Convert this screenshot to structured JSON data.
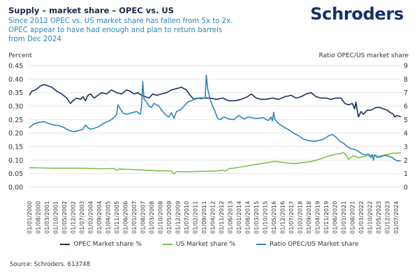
{
  "header": {
    "title": "Supply – market share – OPEC vs. US",
    "subtitle": "Since 2012 OPEC vs. US market share has fallen from 5x to 2x. OPEC appear to have had enough and plan to return barrels from Dec 2024",
    "logo": "Schroders"
  },
  "footer": {
    "source": "Source: Schroders. 613748"
  },
  "chart_data": {
    "type": "line",
    "title": "Supply – market share – OPEC vs. US",
    "left_axis": {
      "label": "Percent",
      "range": [
        0,
        0.45
      ],
      "ticks": [
        "0.00",
        "0.05",
        "0.10",
        "0.15",
        "0.20",
        "0.25",
        "0.30",
        "0.35",
        "0.40",
        "0.45"
      ]
    },
    "right_axis": {
      "label": "Ratio OPEC/US market share",
      "range": [
        0,
        9
      ],
      "ticks": [
        "0",
        "1",
        "2",
        "3",
        "4",
        "5",
        "6",
        "7",
        "8",
        "9"
      ]
    },
    "x_range_months_from_jan_2000": [
      0,
      298
    ],
    "x_tick_labels": [
      "01/01/2000",
      "01/08/2000",
      "01/03/2001",
      "01/10/2001",
      "01/05/2002",
      "01/12/2002",
      "01/07/2003",
      "01/02/2004",
      "01/09/2004",
      "01/04/2005",
      "01/11/2005",
      "01/06/2006",
      "01/01/2007",
      "01/08/2007",
      "01/03/2008",
      "01/10/2008",
      "01/05/2009",
      "01/12/2009",
      "01/07/2010",
      "01/02/2011",
      "01/09/2011",
      "01/04/2012",
      "01/11/2012",
      "01/06/2013",
      "01/01/2014",
      "01/08/2014",
      "01/03/2015",
      "01/10/2015",
      "01/05/2016",
      "01/12/2016",
      "01/07/2017",
      "01/02/2018",
      "01/09/2018",
      "01/04/2019",
      "01/11/2019",
      "01/06/2020",
      "01/01/2021",
      "01/08/2021",
      "01/03/2022",
      "01/10/2022",
      "01/05/2023",
      "01/12/2023",
      "01/07/2024"
    ],
    "grid": true,
    "legend_position": "bottom",
    "series": [
      {
        "name": "OPEC Market share %",
        "axis": "left",
        "color": "#1b2f5a",
        "points": [
          [
            0,
            0.34
          ],
          [
            2,
            0.355
          ],
          [
            5,
            0.36
          ],
          [
            9,
            0.375
          ],
          [
            12,
            0.38
          ],
          [
            15,
            0.375
          ],
          [
            18,
            0.37
          ],
          [
            22,
            0.355
          ],
          [
            26,
            0.345
          ],
          [
            30,
            0.33
          ],
          [
            33,
            0.31
          ],
          [
            35,
            0.32
          ],
          [
            38,
            0.33
          ],
          [
            41,
            0.325
          ],
          [
            43,
            0.335
          ],
          [
            45,
            0.32
          ],
          [
            47,
            0.34
          ],
          [
            49,
            0.345
          ],
          [
            52,
            0.33
          ],
          [
            55,
            0.34
          ],
          [
            58,
            0.35
          ],
          [
            62,
            0.345
          ],
          [
            66,
            0.36
          ],
          [
            70,
            0.35
          ],
          [
            74,
            0.345
          ],
          [
            78,
            0.36
          ],
          [
            81,
            0.355
          ],
          [
            84,
            0.345
          ],
          [
            87,
            0.35
          ],
          [
            90,
            0.34
          ],
          [
            93,
            0.335
          ],
          [
            96,
            0.33
          ],
          [
            99,
            0.345
          ],
          [
            102,
            0.34
          ],
          [
            106,
            0.345
          ],
          [
            110,
            0.35
          ],
          [
            114,
            0.36
          ],
          [
            118,
            0.365
          ],
          [
            122,
            0.37
          ],
          [
            126,
            0.36
          ],
          [
            129,
            0.34
          ],
          [
            132,
            0.325
          ],
          [
            136,
            0.33
          ],
          [
            140,
            0.33
          ],
          [
            145,
            0.33
          ],
          [
            150,
            0.325
          ],
          [
            155,
            0.33
          ],
          [
            160,
            0.32
          ],
          [
            165,
            0.32
          ],
          [
            170,
            0.325
          ],
          [
            175,
            0.335
          ],
          [
            178,
            0.345
          ],
          [
            182,
            0.33
          ],
          [
            186,
            0.325
          ],
          [
            190,
            0.325
          ],
          [
            195,
            0.33
          ],
          [
            200,
            0.325
          ],
          [
            205,
            0.335
          ],
          [
            210,
            0.34
          ],
          [
            214,
            0.33
          ],
          [
            218,
            0.335
          ],
          [
            222,
            0.345
          ],
          [
            226,
            0.35
          ],
          [
            230,
            0.335
          ],
          [
            234,
            0.33
          ],
          [
            238,
            0.33
          ],
          [
            242,
            0.325
          ],
          [
            246,
            0.33
          ],
          [
            250,
            0.33
          ],
          [
            253,
            0.31
          ],
          [
            256,
            0.305
          ],
          [
            259,
            0.31
          ],
          [
            261,
            0.29
          ],
          [
            262,
            0.315
          ],
          [
            263,
            0.285
          ],
          [
            264,
            0.26
          ],
          [
            266,
            0.28
          ],
          [
            268,
            0.27
          ],
          [
            271,
            0.285
          ],
          [
            274,
            0.285
          ],
          [
            278,
            0.295
          ],
          [
            281,
            0.295
          ],
          [
            284,
            0.29
          ],
          [
            287,
            0.285
          ],
          [
            290,
            0.275
          ],
          [
            292,
            0.27
          ],
          [
            293,
            0.26
          ],
          [
            295,
            0.265
          ],
          [
            298,
            0.26
          ]
        ]
      },
      {
        "name": "US Market share %",
        "axis": "left",
        "color": "#7cc34a",
        "points": [
          [
            0,
            0.072
          ],
          [
            10,
            0.071
          ],
          [
            20,
            0.07
          ],
          [
            30,
            0.07
          ],
          [
            40,
            0.07
          ],
          [
            50,
            0.069
          ],
          [
            60,
            0.068
          ],
          [
            68,
            0.069
          ],
          [
            70,
            0.063
          ],
          [
            72,
            0.067
          ],
          [
            80,
            0.066
          ],
          [
            90,
            0.064
          ],
          [
            100,
            0.061
          ],
          [
            104,
            0.06
          ],
          [
            110,
            0.06
          ],
          [
            114,
            0.059
          ],
          [
            116,
            0.05
          ],
          [
            118,
            0.058
          ],
          [
            125,
            0.057
          ],
          [
            135,
            0.058
          ],
          [
            145,
            0.059
          ],
          [
            150,
            0.06
          ],
          [
            155,
            0.063
          ],
          [
            157,
            0.059
          ],
          [
            160,
            0.068
          ],
          [
            170,
            0.075
          ],
          [
            180,
            0.083
          ],
          [
            190,
            0.09
          ],
          [
            196,
            0.095
          ],
          [
            200,
            0.094
          ],
          [
            206,
            0.09
          ],
          [
            212,
            0.087
          ],
          [
            218,
            0.09
          ],
          [
            226,
            0.095
          ],
          [
            234,
            0.105
          ],
          [
            240,
            0.115
          ],
          [
            246,
            0.122
          ],
          [
            250,
            0.125
          ],
          [
            252,
            0.128
          ],
          [
            254,
            0.12
          ],
          [
            256,
            0.103
          ],
          [
            258,
            0.11
          ],
          [
            260,
            0.115
          ],
          [
            262,
            0.113
          ],
          [
            264,
            0.108
          ],
          [
            266,
            0.112
          ],
          [
            270,
            0.115
          ],
          [
            275,
            0.118
          ],
          [
            280,
            0.115
          ],
          [
            284,
            0.118
          ],
          [
            288,
            0.122
          ],
          [
            292,
            0.126
          ],
          [
            298,
            0.127
          ]
        ]
      },
      {
        "name": "Ratio OPEC/US Market share",
        "axis": "right",
        "color": "#2a86b8",
        "points": [
          [
            0,
            4.4
          ],
          [
            4,
            4.7
          ],
          [
            8,
            4.8
          ],
          [
            12,
            4.85
          ],
          [
            16,
            4.7
          ],
          [
            20,
            4.6
          ],
          [
            24,
            4.55
          ],
          [
            28,
            4.4
          ],
          [
            32,
            4.2
          ],
          [
            36,
            4.1
          ],
          [
            40,
            4.2
          ],
          [
            43,
            4.3
          ],
          [
            45,
            4.6
          ],
          [
            47,
            4.4
          ],
          [
            49,
            4.3
          ],
          [
            52,
            4.35
          ],
          [
            56,
            4.5
          ],
          [
            60,
            4.75
          ],
          [
            64,
            4.9
          ],
          [
            68,
            5.15
          ],
          [
            70,
            5.4
          ],
          [
            71,
            6.1
          ],
          [
            73,
            5.8
          ],
          [
            75,
            5.5
          ],
          [
            78,
            5.4
          ],
          [
            82,
            5.5
          ],
          [
            86,
            5.6
          ],
          [
            89,
            5.4
          ],
          [
            90,
            6.0
          ],
          [
            91,
            7.8
          ],
          [
            92,
            6.5
          ],
          [
            94,
            6.3
          ],
          [
            96,
            6.0
          ],
          [
            98,
            5.9
          ],
          [
            100,
            6.2
          ],
          [
            104,
            6.0
          ],
          [
            106,
            5.7
          ],
          [
            108,
            5.5
          ],
          [
            110,
            5.3
          ],
          [
            112,
            5.2
          ],
          [
            114,
            5.5
          ],
          [
            116,
            5.1
          ],
          [
            118,
            5.6
          ],
          [
            121,
            5.7
          ],
          [
            124,
            6.0
          ],
          [
            127,
            6.3
          ],
          [
            130,
            6.4
          ],
          [
            134,
            6.6
          ],
          [
            138,
            6.55
          ],
          [
            141,
            6.6
          ],
          [
            142,
            8.3
          ],
          [
            143,
            7.3
          ],
          [
            145,
            6.5
          ],
          [
            147,
            6.0
          ],
          [
            149,
            5.6
          ],
          [
            151,
            5.1
          ],
          [
            153,
            5.0
          ],
          [
            156,
            5.2
          ],
          [
            160,
            5.05
          ],
          [
            164,
            5.0
          ],
          [
            168,
            5.3
          ],
          [
            172,
            5.05
          ],
          [
            176,
            5.2
          ],
          [
            180,
            5.1
          ],
          [
            184,
            5.1
          ],
          [
            188,
            5.15
          ],
          [
            190,
            5.0
          ],
          [
            192,
            4.95
          ],
          [
            194,
            5.2
          ],
          [
            195,
            4.9
          ],
          [
            196,
            5.55
          ],
          [
            197,
            5.0
          ],
          [
            200,
            4.7
          ],
          [
            204,
            4.45
          ],
          [
            208,
            4.25
          ],
          [
            212,
            4.0
          ],
          [
            216,
            3.8
          ],
          [
            220,
            3.55
          ],
          [
            224,
            3.45
          ],
          [
            228,
            3.4
          ],
          [
            232,
            3.45
          ],
          [
            236,
            3.55
          ],
          [
            240,
            3.8
          ],
          [
            243,
            3.9
          ],
          [
            246,
            3.7
          ],
          [
            249,
            3.4
          ],
          [
            252,
            3.25
          ],
          [
            255,
            3.0
          ],
          [
            258,
            2.85
          ],
          [
            261,
            2.8
          ],
          [
            264,
            2.65
          ],
          [
            267,
            2.45
          ],
          [
            270,
            2.4
          ],
          [
            272,
            2.45
          ],
          [
            274,
            2.2
          ],
          [
            275,
            2.4
          ],
          [
            276,
            2.0
          ],
          [
            277,
            2.4
          ],
          [
            279,
            2.2
          ],
          [
            282,
            2.25
          ],
          [
            285,
            2.35
          ],
          [
            288,
            2.3
          ],
          [
            291,
            2.2
          ],
          [
            293,
            2.05
          ],
          [
            295,
            1.95
          ],
          [
            298,
            1.95
          ]
        ]
      }
    ]
  }
}
